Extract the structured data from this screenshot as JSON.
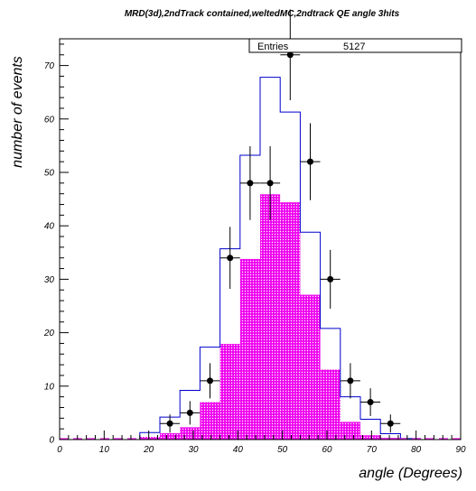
{
  "chart_data": {
    "type": "histogram",
    "title": "MRD(3d),2ndTrack contained,weltedMC,2ndtrack QE angle 3hits",
    "xlabel": "angle (Degrees)",
    "ylabel": "number of events",
    "xlim": [
      0,
      90
    ],
    "ylim": [
      0,
      75
    ],
    "x_ticks": [
      0,
      10,
      20,
      30,
      40,
      50,
      60,
      70,
      80,
      90
    ],
    "y_ticks": [
      0,
      10,
      20,
      30,
      40,
      50,
      60,
      70
    ],
    "grid": false,
    "stats_box": {
      "label": "Entries",
      "value": "5127"
    },
    "bin_edges": [
      0,
      4.5,
      9,
      13.5,
      18,
      22.5,
      27,
      31.5,
      36,
      40.5,
      45,
      49.5,
      54,
      58.5,
      63,
      67.5,
      72,
      76.5,
      81,
      85.5,
      90
    ],
    "series": [
      {
        "style": "outline",
        "color": "#0000cc",
        "values": [
          0,
          0,
          0,
          0,
          1.3,
          4.2,
          9.2,
          17.3,
          35.7,
          53.2,
          67.8,
          61.3,
          38.8,
          20.8,
          8.0,
          3.8,
          1.1,
          0.2,
          0,
          0
        ]
      },
      {
        "style": "filled-hatched",
        "color": "#ee00ee",
        "values": [
          0,
          0,
          0,
          0,
          0.5,
          1.2,
          2.3,
          7.0,
          17.9,
          33.8,
          45.9,
          44.4,
          27.1,
          13.1,
          3.3,
          0.8,
          0.3,
          0,
          0,
          0
        ]
      },
      {
        "style": "points-with-errors",
        "color": "#000000",
        "x": [
          24.75,
          29.25,
          33.75,
          38.25,
          42.75,
          47.25,
          51.75,
          56.25,
          60.75,
          65.25,
          69.75,
          74.25
        ],
        "values": [
          3,
          5,
          11,
          34,
          48,
          48,
          72,
          52,
          30,
          11,
          7,
          3
        ],
        "errors": [
          1.7,
          2.2,
          3.3,
          5.8,
          6.9,
          6.9,
          8.5,
          7.2,
          5.5,
          3.3,
          2.6,
          1.7
        ]
      }
    ]
  }
}
